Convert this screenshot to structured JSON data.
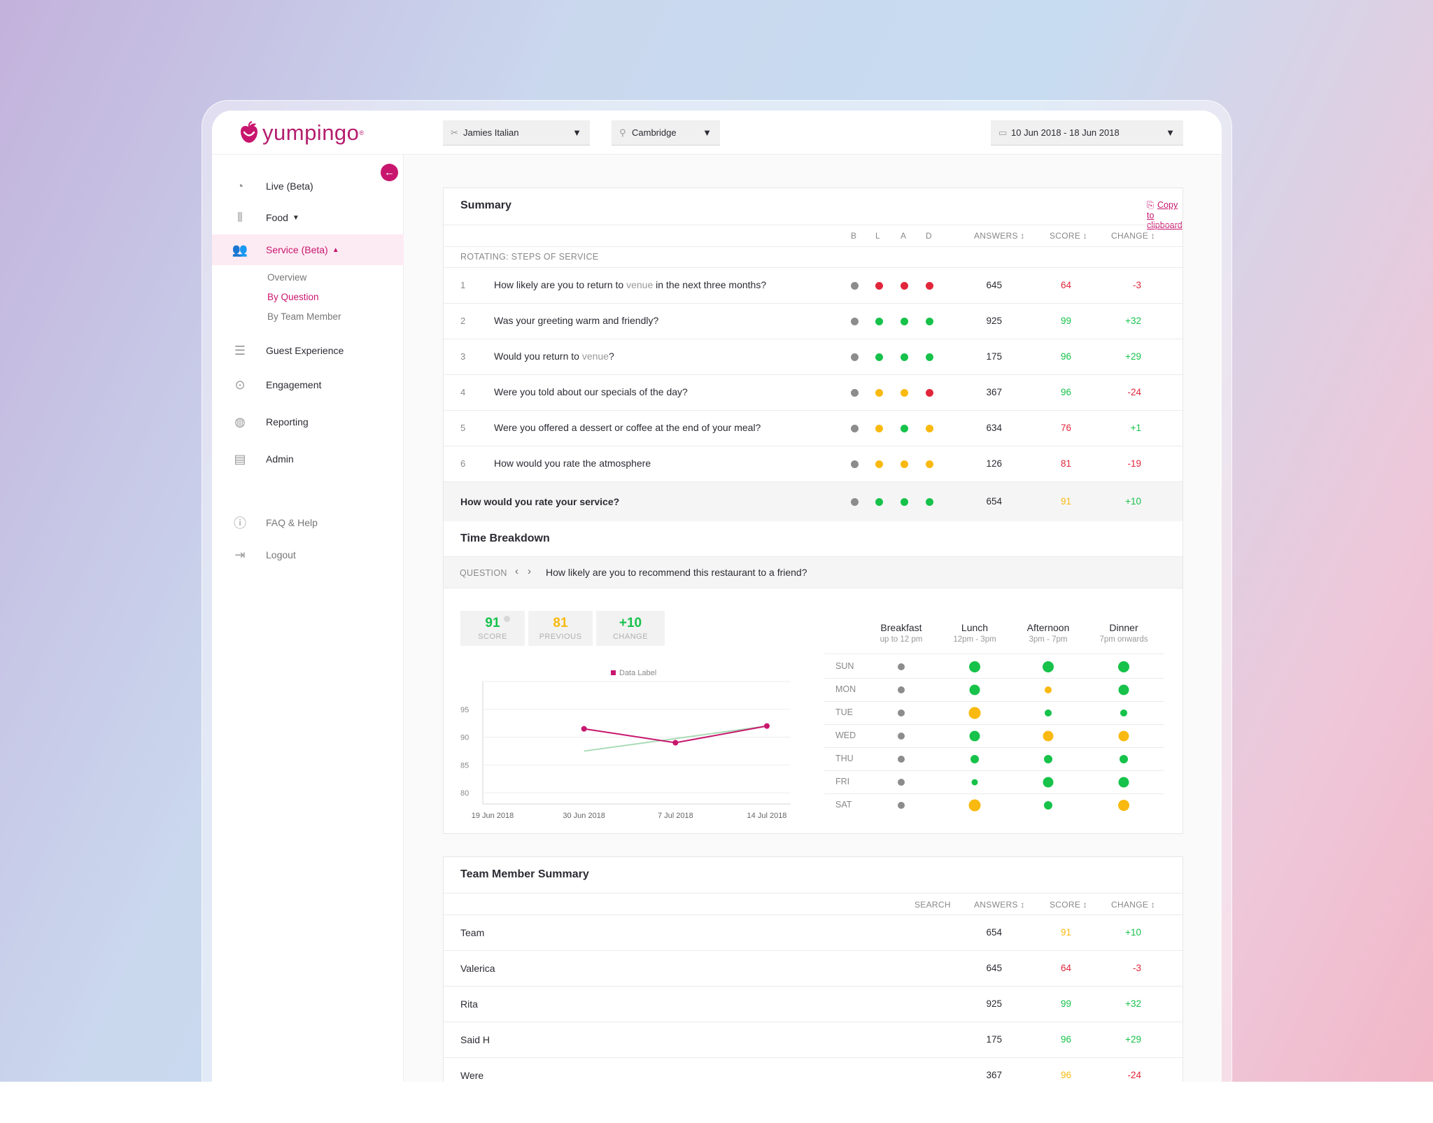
{
  "app": {
    "logo_text": "yumpingo",
    "logo_mark": "®"
  },
  "filters": {
    "restaurant": "Jamies Italian",
    "location": "Cambridge",
    "date_range": "10 Jun 2018 - 18 Jun 2018"
  },
  "sidebar": {
    "items": [
      {
        "label": "Live (Beta)",
        "icon": "gauge-icon"
      },
      {
        "label": "Food",
        "icon": "bars-icon"
      },
      {
        "label": "Service (Beta)",
        "icon": "people-icon"
      },
      {
        "label": "Guest Experience",
        "icon": "list-icon"
      },
      {
        "label": "Engagement",
        "icon": "coin-icon"
      },
      {
        "label": "Reporting",
        "icon": "globe-icon"
      },
      {
        "label": "Admin",
        "icon": "window-icon"
      },
      {
        "label": "FAQ & Help",
        "icon": "info-icon"
      },
      {
        "label": "Logout",
        "icon": "logout-icon"
      }
    ],
    "sub_items": [
      "Overview",
      "By Question",
      "By Team Member"
    ]
  },
  "summary": {
    "title": "Summary",
    "copy_label": "Copy to clipboard",
    "cols": {
      "b": "B",
      "l": "L",
      "a": "A",
      "d": "D",
      "answers": "ANSWERS ↕",
      "score": "SCORE ↕",
      "change": "CHANGE ↕"
    },
    "group_label": "ROTATING: STEPS OF SERVICE",
    "rows": [
      {
        "num": "1",
        "q_pre": "How likely are you to return to ",
        "venue": "venue",
        "q_post": " in the next three months?",
        "answers": "645",
        "score": "64",
        "change": "-3",
        "score_color": "#e1263b",
        "change_color": "#e1263b",
        "dots": [
          "#8c8c8c",
          "#e1263b",
          "#e1263b",
          "#e1263b"
        ]
      },
      {
        "num": "2",
        "q_pre": "Was your greeting warm and friendly?",
        "venue": "",
        "q_post": "",
        "answers": "925",
        "score": "99",
        "change": "+32",
        "score_color": "#16c24a",
        "change_color": "#16c24a",
        "dots": [
          "#8c8c8c",
          "#16c24a",
          "#16c24a",
          "#16c24a"
        ]
      },
      {
        "num": "3",
        "q_pre": "Would you return to ",
        "venue": "venue",
        "q_post": "?",
        "answers": "175",
        "score": "96",
        "change": "+29",
        "score_color": "#16c24a",
        "change_color": "#16c24a",
        "dots": [
          "#8c8c8c",
          "#16c24a",
          "#16c24a",
          "#16c24a"
        ]
      },
      {
        "num": "4",
        "q_pre": "Were you told about our specials of the day?",
        "venue": "",
        "q_post": "",
        "answers": "367",
        "score": "96",
        "change": "-24",
        "score_color": "#16c24a",
        "change_color": "#e1263b",
        "dots": [
          "#8c8c8c",
          "#f9b90f",
          "#f9b90f",
          "#e1263b"
        ]
      },
      {
        "num": "5",
        "q_pre": "Were you offered a dessert or coffee at the end of your meal?",
        "venue": "",
        "q_post": "",
        "answers": "634",
        "score": "76",
        "change": "+1",
        "score_color": "#e1263b",
        "change_color": "#16c24a",
        "dots": [
          "#8c8c8c",
          "#f9b90f",
          "#16c24a",
          "#f9b90f"
        ]
      },
      {
        "num": "6",
        "q_pre": "How would you rate the atmosphere",
        "venue": "",
        "q_post": "",
        "answers": "126",
        "score": "81",
        "change": "-19",
        "score_color": "#e1263b",
        "change_color": "#e1263b",
        "dots": [
          "#8c8c8c",
          "#f9b90f",
          "#f9b90f",
          "#f9b90f"
        ]
      }
    ],
    "total": {
      "q": "How would you rate your service?",
      "answers": "654",
      "score": "91",
      "change": "+10",
      "score_color": "#f9b90f",
      "change_color": "#16c24a",
      "dots": [
        "#8c8c8c",
        "#16c24a",
        "#16c24a",
        "#16c24a"
      ]
    }
  },
  "time_breakdown": {
    "title": "Time Breakdown",
    "question_label": "QUESTION",
    "question": "How likely are you to recommend this restaurant to a friend?",
    "stats": [
      {
        "value": "91",
        "label": "SCORE",
        "color": "#16c24a"
      },
      {
        "value": "81",
        "label": "PREVIOUS",
        "color": "#f9b90f"
      },
      {
        "value": "+10",
        "label": "CHANGE",
        "color": "#16c24a"
      }
    ],
    "periods": [
      {
        "name": "Breakfast",
        "sub": "up to 12 pm"
      },
      {
        "name": "Lunch",
        "sub": "12pm - 3pm"
      },
      {
        "name": "Afternoon",
        "sub": "3pm - 7pm"
      },
      {
        "name": "Dinner",
        "sub": "7pm onwards"
      }
    ],
    "days": [
      {
        "day": "SUN",
        "cells": [
          {
            "c": "#8c8c8c",
            "s": 10
          },
          {
            "c": "#16c24a",
            "s": 16
          },
          {
            "c": "#16c24a",
            "s": 16
          },
          {
            "c": "#16c24a",
            "s": 16
          }
        ]
      },
      {
        "day": "MON",
        "cells": [
          {
            "c": "#8c8c8c",
            "s": 10
          },
          {
            "c": "#16c24a",
            "s": 15
          },
          {
            "c": "#f9b90f",
            "s": 10
          },
          {
            "c": "#16c24a",
            "s": 15
          }
        ]
      },
      {
        "day": "TUE",
        "cells": [
          {
            "c": "#8c8c8c",
            "s": 10
          },
          {
            "c": "#f9b90f",
            "s": 17
          },
          {
            "c": "#16c24a",
            "s": 10
          },
          {
            "c": "#16c24a",
            "s": 10
          }
        ]
      },
      {
        "day": "WED",
        "cells": [
          {
            "c": "#8c8c8c",
            "s": 10
          },
          {
            "c": "#16c24a",
            "s": 15
          },
          {
            "c": "#f9b90f",
            "s": 15
          },
          {
            "c": "#f9b90f",
            "s": 15
          }
        ]
      },
      {
        "day": "THU",
        "cells": [
          {
            "c": "#8c8c8c",
            "s": 10
          },
          {
            "c": "#16c24a",
            "s": 12
          },
          {
            "c": "#16c24a",
            "s": 12
          },
          {
            "c": "#16c24a",
            "s": 12
          }
        ]
      },
      {
        "day": "FRI",
        "cells": [
          {
            "c": "#8c8c8c",
            "s": 10
          },
          {
            "c": "#16c24a",
            "s": 9
          },
          {
            "c": "#16c24a",
            "s": 15
          },
          {
            "c": "#16c24a",
            "s": 15
          }
        ]
      },
      {
        "day": "SAT",
        "cells": [
          {
            "c": "#8c8c8c",
            "s": 10
          },
          {
            "c": "#f9b90f",
            "s": 17
          },
          {
            "c": "#16c24a",
            "s": 12
          },
          {
            "c": "#f9b90f",
            "s": 16
          }
        ]
      }
    ]
  },
  "chart_data": {
    "type": "line",
    "legend": [
      "Data Label"
    ],
    "legend_placement": "top-center",
    "x_ticks": [
      "19 Jun 2018",
      "30 Jun 2018",
      "7 Jul 2018",
      "14 Jul 2018"
    ],
    "y_ticks": [
      80,
      85,
      90,
      95
    ],
    "ylim": [
      78,
      100
    ],
    "grid": true,
    "series": [
      {
        "name": "Data Label",
        "color": "#c8166e",
        "markers": true,
        "points": [
          {
            "x": "30 Jun 2018",
            "y": 91.5
          },
          {
            "x": "7 Jul 2018",
            "y": 89
          },
          {
            "x": "14 Jul 2018",
            "y": 92
          }
        ]
      },
      {
        "name": "",
        "color": "#a9dbb6",
        "markers": false,
        "points": [
          {
            "x": "30 Jun 2018",
            "y": 87.5
          },
          {
            "x": "14 Jul 2018",
            "y": 92
          }
        ]
      }
    ]
  },
  "team_summary": {
    "title": "Team Member Summary",
    "cols": {
      "search": "SEARCH",
      "answers": "ANSWERS ↕",
      "score": "SCORE ↕",
      "change": "CHANGE ↕"
    },
    "rows": [
      {
        "name": "Team",
        "answers": "654",
        "score": "91",
        "change": "+10",
        "score_color": "#f9b90f",
        "change_color": "#16c24a"
      },
      {
        "name": "Valerica",
        "answers": "645",
        "score": "64",
        "change": "-3",
        "score_color": "#e1263b",
        "change_color": "#e1263b"
      },
      {
        "name": "Rita",
        "answers": "925",
        "score": "99",
        "change": "+32",
        "score_color": "#16c24a",
        "change_color": "#16c24a"
      },
      {
        "name": "Said H",
        "answers": "175",
        "score": "96",
        "change": "+29",
        "score_color": "#16c24a",
        "change_color": "#16c24a"
      },
      {
        "name": "Were",
        "answers": "367",
        "score": "96",
        "change": "-24",
        "score_color": "#f9b90f",
        "change_color": "#e1263b"
      }
    ]
  }
}
